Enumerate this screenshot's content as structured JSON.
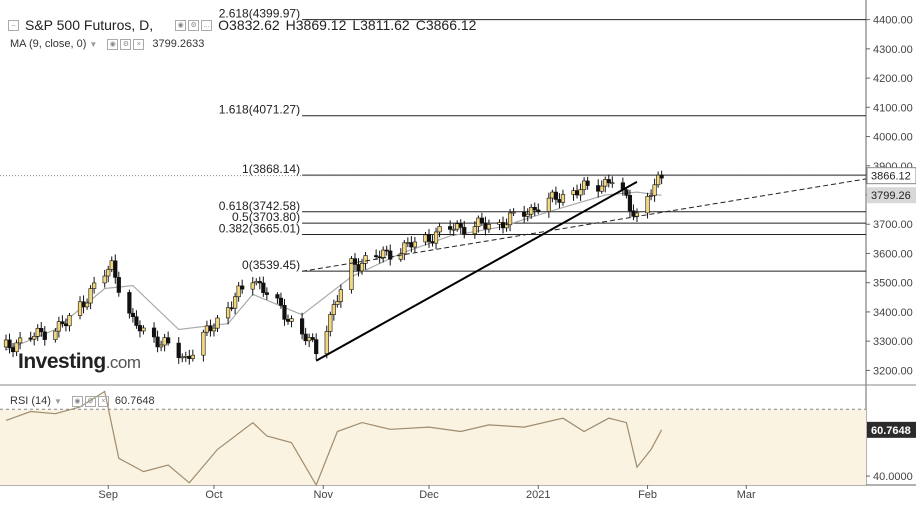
{
  "header": {
    "title": "S&P 500 Futuros, D,",
    "open": "O3832.62",
    "high": "H3869.12",
    "low": "L3811.62",
    "close": "C3866.12",
    "ma_label": "MA (9, close, 0)",
    "ma_value": "3799.2633"
  },
  "rsi": {
    "label": "RSI (14)",
    "value": "60.7648",
    "badge": "60.7648",
    "ticks": [
      "40.0000"
    ]
  },
  "logo": {
    "brand": "Investing",
    "suffix": ".com"
  },
  "colors": {
    "up_candle": "#f2d77e",
    "down_candle": "#111111",
    "ma_line": "#aaaaaa",
    "rsi_fill": "#fbf3e2",
    "rsi_line": "#a08c6e",
    "badge_dark": "#2b2b2b"
  },
  "chart_data": {
    "type": "candlestick",
    "title": "S&P 500 Futuros, D,",
    "price_axis": {
      "range": [
        3150,
        4450
      ],
      "ticks": [
        "4400.00",
        "4300.00",
        "4200.00",
        "4100.00",
        "4000.00",
        "3900.00",
        "3800.00",
        "3700.00",
        "3600.00",
        "3500.00",
        "3400.00",
        "3300.00",
        "3200.00"
      ]
    },
    "x_axis": {
      "labels": [
        "Sep",
        "Oct",
        "Nov",
        "Dec",
        "2021",
        "Feb",
        "Mar"
      ],
      "start": "2020-08-03",
      "end": "2021-03-31"
    },
    "price_badges": {
      "last": "3866.12",
      "ma": "3799.26"
    },
    "fibonacci": [
      {
        "label": "2.618(4399.97)",
        "price": 4399.97
      },
      {
        "label": "1.618(4071.27)",
        "price": 4071.27
      },
      {
        "label": "1(3868.14)",
        "price": 3868.14
      },
      {
        "label": "0.618(3742.58)",
        "price": 3742.58
      },
      {
        "label": "0.5(3703.80)",
        "price": 3703.8
      },
      {
        "label": "0.382(3665.01)",
        "price": 3665.01
      },
      {
        "label": "0(3539.45)",
        "price": 3539.45
      }
    ],
    "trendline": {
      "from": {
        "date": "2020-10-30",
        "price": 3233
      },
      "to": {
        "date": "2021-01-29",
        "price": 3845
      }
    },
    "dashed_trendline": {
      "from": {
        "date": "2020-10-26",
        "price": 3539
      },
      "to": {
        "date": "2021-03-31",
        "price": 3855
      }
    },
    "ma_series": [
      {
        "date": "2020-08-03",
        "price": 3270
      },
      {
        "date": "2020-08-17",
        "price": 3340
      },
      {
        "date": "2020-08-31",
        "price": 3480
      },
      {
        "date": "2020-09-08",
        "price": 3490
      },
      {
        "date": "2020-09-21",
        "price": 3340
      },
      {
        "date": "2020-10-05",
        "price": 3360
      },
      {
        "date": "2020-10-12",
        "price": 3460
      },
      {
        "date": "2020-10-26",
        "price": 3390
      },
      {
        "date": "2020-11-09",
        "price": 3520
      },
      {
        "date": "2020-11-23",
        "price": 3600
      },
      {
        "date": "2020-12-07",
        "price": 3660
      },
      {
        "date": "2020-12-21",
        "price": 3690
      },
      {
        "date": "2021-01-06",
        "price": 3750
      },
      {
        "date": "2021-01-20",
        "price": 3800
      },
      {
        "date": "2021-01-29",
        "price": 3810
      },
      {
        "date": "2021-02-05",
        "price": 3799
      }
    ],
    "rsi_series": [
      {
        "date": "2020-08-03",
        "value": 65
      },
      {
        "date": "2020-08-10",
        "value": 69
      },
      {
        "date": "2020-08-17",
        "value": 68
      },
      {
        "date": "2020-08-24",
        "value": 71
      },
      {
        "date": "2020-08-31",
        "value": 78
      },
      {
        "date": "2020-09-04",
        "value": 48
      },
      {
        "date": "2020-09-11",
        "value": 42
      },
      {
        "date": "2020-09-18",
        "value": 45
      },
      {
        "date": "2020-09-24",
        "value": 37
      },
      {
        "date": "2020-10-02",
        "value": 52
      },
      {
        "date": "2020-10-12",
        "value": 64
      },
      {
        "date": "2020-10-16",
        "value": 58
      },
      {
        "date": "2020-10-23",
        "value": 55
      },
      {
        "date": "2020-10-30",
        "value": 36
      },
      {
        "date": "2020-11-05",
        "value": 60
      },
      {
        "date": "2020-11-12",
        "value": 64
      },
      {
        "date": "2020-11-20",
        "value": 61
      },
      {
        "date": "2020-12-01",
        "value": 62
      },
      {
        "date": "2020-12-10",
        "value": 60
      },
      {
        "date": "2020-12-18",
        "value": 63
      },
      {
        "date": "2020-12-28",
        "value": 62
      },
      {
        "date": "2021-01-08",
        "value": 66
      },
      {
        "date": "2021-01-14",
        "value": 60
      },
      {
        "date": "2021-01-21",
        "value": 66
      },
      {
        "date": "2021-01-26",
        "value": 64
      },
      {
        "date": "2021-01-29",
        "value": 44
      },
      {
        "date": "2021-02-02",
        "value": 52
      },
      {
        "date": "2021-02-05",
        "value": 60.8
      }
    ],
    "rsi_range": [
      36,
      80
    ],
    "rsi_bands": [
      70,
      30
    ]
  }
}
